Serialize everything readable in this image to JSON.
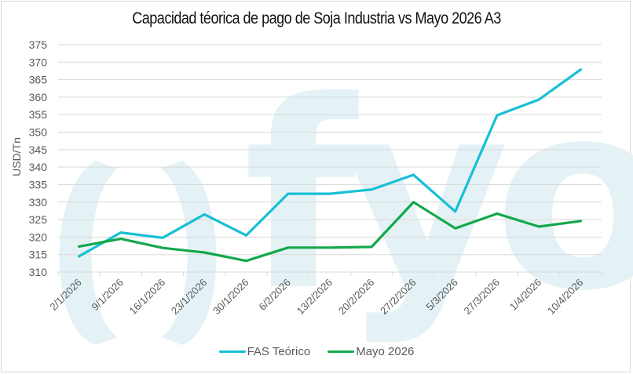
{
  "chart_data": {
    "type": "line",
    "title": "Capacidad téorica de pago de Soja Industria vs Mayo 2026 A3",
    "xlabel": "",
    "ylabel": "USD/Tn",
    "ylim": [
      310,
      375
    ],
    "yticks": [
      310,
      315,
      320,
      325,
      330,
      335,
      340,
      345,
      350,
      355,
      360,
      365,
      370,
      375
    ],
    "grid": true,
    "legend_position": "bottom",
    "categories": [
      "2/1/2026",
      "9/1/2026",
      "16/1/2026",
      "23/1/2026",
      "30/1/2026",
      "6/2/2026",
      "13/2/2026",
      "20/2/2026",
      "27/2/2026",
      "5/3/2026",
      "27/3/2026",
      "1/4/2026",
      "10/4/2026"
    ],
    "series": [
      {
        "name": "FAS Teórico",
        "color": "#17bfd5",
        "values": [
          314.5,
          321.3,
          319.8,
          326.5,
          320.5,
          332.4,
          332.4,
          333.6,
          337.8,
          327.3,
          354.8,
          359.3,
          367.9
        ]
      },
      {
        "name": "Mayo 2026",
        "color": "#12a84a",
        "values": [
          317.3,
          319.5,
          316.9,
          315.6,
          313.2,
          317.0,
          317.0,
          317.2,
          330.0,
          322.5,
          326.7,
          323.0,
          324.6
        ]
      }
    ],
    "watermark": "(fyo"
  },
  "colors": {
    "grid": "#d9d9d9",
    "axis_text": "#595959",
    "watermark": "#e4f2f6"
  }
}
